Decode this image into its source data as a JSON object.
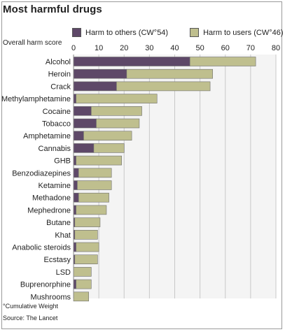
{
  "chart_data": {
    "type": "bar",
    "orientation": "horizontal",
    "stacked": true,
    "title": "Most harmful drugs",
    "xlabel": "Overall harm score",
    "xlim": [
      0,
      80
    ],
    "xticks": [
      0,
      10,
      20,
      30,
      40,
      50,
      60,
      70,
      80
    ],
    "grid": true,
    "legend_position": "top",
    "categories": [
      "Alcohol",
      "Heroin",
      "Crack",
      "Methylamphetamine",
      "Cocaine",
      "Tobacco",
      "Amphetamine",
      "Cannabis",
      "GHB",
      "Benzodiazepines",
      "Ketamine",
      "Methadone",
      "Mephedrone",
      "Butane",
      "Khat",
      "Anabolic steroids",
      "Ecstasy",
      "LSD",
      "Buprenorphine",
      "Mushrooms"
    ],
    "series": [
      {
        "name": "Harm to others (CW°54)",
        "color": "#5e4868",
        "values": [
          46,
          21,
          17,
          1,
          7,
          9,
          4,
          8,
          1,
          2,
          1.5,
          2,
          1,
          0.5,
          0.5,
          1,
          0.5,
          0,
          1,
          0
        ]
      },
      {
        "name": "Harm to users (CW°46)",
        "color": "#bfbf8e",
        "values": [
          26,
          34,
          37,
          32,
          20,
          17,
          19,
          12,
          18,
          13,
          13.5,
          12,
          12,
          10,
          9,
          9,
          9,
          7,
          6,
          6
        ]
      }
    ]
  },
  "footnote": "°Cumulative Weight",
  "source": "Source: The Lancet"
}
